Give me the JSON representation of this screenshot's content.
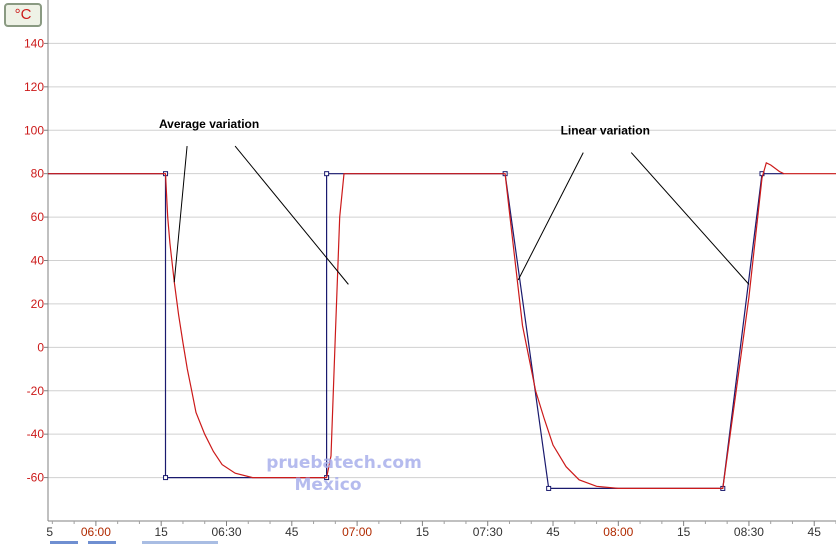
{
  "unit_button": {
    "label": "°C"
  },
  "watermark": {
    "line1": "pruebatech.com",
    "line2": "Mexico"
  },
  "chart_data": {
    "type": "line",
    "title": "",
    "xlabel": "",
    "ylabel": "",
    "yunit": "°C",
    "ylim": [
      -80,
      160
    ],
    "xlim": [
      "05:49",
      "08:50"
    ],
    "yticks": [
      -60,
      -40,
      -20,
      0,
      20,
      40,
      60,
      80,
      100,
      120,
      140
    ],
    "xtick_labels": [
      {
        "t": "05:45",
        "label": "5",
        "highlight": false
      },
      {
        "t": "06:00",
        "label": "06:00",
        "highlight": true
      },
      {
        "t": "06:15",
        "label": "15",
        "highlight": false
      },
      {
        "t": "06:30",
        "label": "06:30",
        "highlight": false
      },
      {
        "t": "06:45",
        "label": "45",
        "highlight": false
      },
      {
        "t": "07:00",
        "label": "07:00",
        "highlight": true
      },
      {
        "t": "07:15",
        "label": "15",
        "highlight": false
      },
      {
        "t": "07:30",
        "label": "07:30",
        "highlight": false
      },
      {
        "t": "07:45",
        "label": "45",
        "highlight": false
      },
      {
        "t": "08:00",
        "label": "08:00",
        "highlight": true
      },
      {
        "t": "08:15",
        "label": "15",
        "highlight": false
      },
      {
        "t": "08:30",
        "label": "08:30",
        "highlight": false
      },
      {
        "t": "08:45",
        "label": "45",
        "highlight": false
      }
    ],
    "grid": true,
    "colors": {
      "setpoint": "#1a1a6e",
      "measured": "#cc1a1a",
      "grid": "#d0d0d0",
      "highlight_label": "#b02a00"
    },
    "series": [
      {
        "role": "setpoint",
        "marker_indices": [
          1,
          2,
          3,
          4,
          6,
          7,
          8,
          9
        ],
        "points": [
          [
            "05:49",
            80
          ],
          [
            "06:16",
            80
          ],
          [
            "06:16",
            -60
          ],
          [
            "06:53",
            -60
          ],
          [
            "06:53",
            80
          ],
          [
            "07:00",
            80
          ],
          [
            "07:34",
            80
          ],
          [
            "07:44",
            -65
          ],
          [
            "08:24",
            -65
          ],
          [
            "08:33",
            80
          ],
          [
            "08:38",
            80
          ]
        ]
      },
      {
        "role": "measured",
        "points": [
          [
            "05:49",
            80
          ],
          [
            "06:16",
            80
          ],
          [
            "06:16.5",
            60
          ],
          [
            "06:17",
            48
          ],
          [
            "06:18",
            30
          ],
          [
            "06:19",
            15
          ],
          [
            "06:20",
            2
          ],
          [
            "06:21",
            -10
          ],
          [
            "06:22",
            -20
          ],
          [
            "06:23",
            -30
          ],
          [
            "06:25",
            -40
          ],
          [
            "06:27",
            -48
          ],
          [
            "06:29",
            -54
          ],
          [
            "06:32",
            -58
          ],
          [
            "06:36",
            -60
          ],
          [
            "06:53",
            -60
          ],
          [
            "06:54",
            -50
          ],
          [
            "06:55",
            5
          ],
          [
            "06:56",
            60
          ],
          [
            "06:57",
            80
          ],
          [
            "07:34",
            80
          ],
          [
            "07:35",
            62
          ],
          [
            "07:38",
            10
          ],
          [
            "07:41",
            -20
          ],
          [
            "07:43",
            -33
          ],
          [
            "07:45",
            -45
          ],
          [
            "07:48",
            -55
          ],
          [
            "07:51",
            -61
          ],
          [
            "07:55",
            -64
          ],
          [
            "08:00",
            -65
          ],
          [
            "08:24",
            -65
          ],
          [
            "08:27",
            -21
          ],
          [
            "08:30",
            23
          ],
          [
            "08:33",
            78
          ],
          [
            "08:34",
            85
          ],
          [
            "08:35",
            84
          ],
          [
            "08:37",
            81
          ],
          [
            "08:38",
            80
          ],
          [
            "08:50",
            80
          ]
        ]
      }
    ],
    "annotations": [
      {
        "text": "Average variation",
        "at": [
          "06:26",
          101
        ],
        "pointers": [
          [
            "06:18",
            30
          ],
          [
            "06:58",
            29
          ]
        ]
      },
      {
        "text": "Linear variation",
        "at": [
          "07:57",
          98
        ],
        "pointers": [
          [
            "07:37",
            31
          ],
          [
            "08:30",
            29
          ]
        ]
      }
    ]
  }
}
